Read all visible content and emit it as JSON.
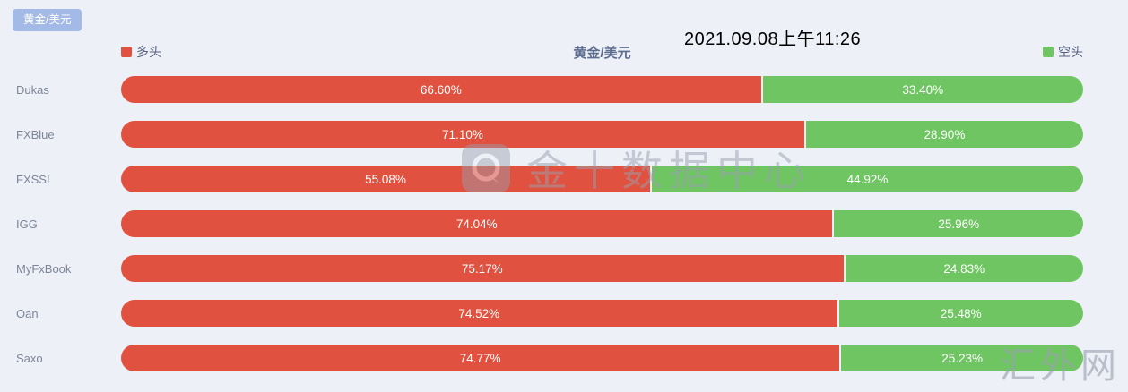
{
  "page": {
    "background": "#eef0f7"
  },
  "symbol_button": {
    "label": "黄金/美元"
  },
  "header": {
    "timestamp": "2021.09.08上午11:26"
  },
  "chart": {
    "title": "黄金/美元",
    "legend": {
      "long": {
        "label": "多头",
        "color": "#e0523f"
      },
      "short": {
        "label": "空头",
        "color": "#6ec561"
      }
    }
  },
  "chart_data": {
    "type": "bar",
    "orientation": "horizontal-stacked",
    "title": "黄金/美元",
    "categories": [
      "Dukas",
      "FXBlue",
      "FXSSI",
      "IGG",
      "MyFxBook",
      "Oan",
      "Saxo"
    ],
    "series": [
      {
        "name": "多头",
        "color": "#e0523f",
        "values": [
          66.6,
          71.1,
          55.08,
          74.04,
          75.17,
          74.52,
          74.77
        ]
      },
      {
        "name": "空头",
        "color": "#6ec561",
        "values": [
          33.4,
          28.9,
          44.92,
          25.96,
          24.83,
          25.48,
          25.23
        ]
      }
    ],
    "value_format": "percent",
    "xlim": [
      0,
      100
    ],
    "grid": false,
    "legend_position": "top"
  },
  "watermarks": {
    "center_text": "金十数据中心",
    "corner_text": "汇外网"
  }
}
